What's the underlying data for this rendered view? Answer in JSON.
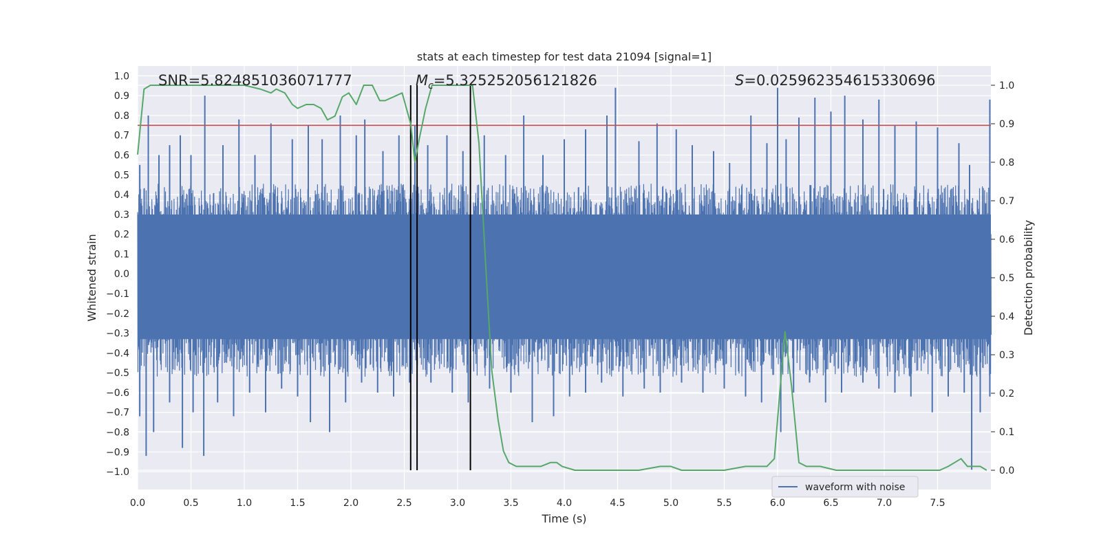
{
  "chart_data": {
    "type": "line",
    "title": "stats at each timestep for test data 21094 [signal=1]",
    "xlabel": "Time (s)",
    "ylabel_left": "Whitened strain",
    "ylabel_right": "Detection probability",
    "xlim": [
      0,
      8
    ],
    "ylim_left": [
      -1.09,
      1.05
    ],
    "ylim_right": [
      -0.05,
      1.05
    ],
    "xticks": [
      "0.0",
      "0.5",
      "1.0",
      "1.5",
      "2.0",
      "2.5",
      "3.0",
      "3.5",
      "4.0",
      "4.5",
      "5.0",
      "5.5",
      "6.0",
      "6.5",
      "7.0",
      "7.5"
    ],
    "yticks_left": [
      "1.0",
      "0.9",
      "0.8",
      "0.7",
      "0.6",
      "0.5",
      "0.4",
      "0.3",
      "0.2",
      "0.1",
      "0.0",
      "-0.1",
      "-0.2",
      "-0.3",
      "-0.4",
      "-0.5",
      "-0.6",
      "-0.7",
      "-0.8",
      "-0.9",
      "-1.0"
    ],
    "yticks_right": [
      "1.0",
      "0.9",
      "0.8",
      "0.7",
      "0.6",
      "0.5",
      "0.4",
      "0.3",
      "0.2",
      "0.1",
      "0.0"
    ],
    "grid": true,
    "annotations": {
      "snr": "SNR=5.824851036071777",
      "mc_symbol": "M",
      "mc_sub": "c",
      "mc_value": "=5.325252056121826",
      "s_symbol": "S",
      "s_value": "=0.025962354615330696"
    },
    "threshold_line": {
      "value": 0.75,
      "axis": "left",
      "color": "#c44e52"
    },
    "vertical_lines": {
      "x": [
        2.56,
        2.62,
        3.12
      ],
      "color": "#000000"
    },
    "legend": {
      "position": "lower-right",
      "entries": [
        "waveform with noise"
      ]
    },
    "series": [
      {
        "name": "waveform with noise",
        "axis": "left",
        "color": "#4c72b0",
        "envelope_upper_typical": 0.35,
        "envelope_lower_typical": -0.4,
        "spikes_upper": [
          [
            0.02,
            0.55
          ],
          [
            0.1,
            0.8
          ],
          [
            0.2,
            0.6
          ],
          [
            0.3,
            0.65
          ],
          [
            0.4,
            0.7
          ],
          [
            0.5,
            0.6
          ],
          [
            0.63,
            0.9
          ],
          [
            0.8,
            0.65
          ],
          [
            0.95,
            0.78
          ],
          [
            1.1,
            0.6
          ],
          [
            1.25,
            0.76
          ],
          [
            1.45,
            0.68
          ],
          [
            1.6,
            0.75
          ],
          [
            1.73,
            0.68
          ],
          [
            1.9,
            0.8
          ],
          [
            2.05,
            0.7
          ],
          [
            2.13,
            0.78
          ],
          [
            2.3,
            0.62
          ],
          [
            2.45,
            0.7
          ],
          [
            2.6,
            0.75
          ],
          [
            2.72,
            0.65
          ],
          [
            2.9,
            0.7
          ],
          [
            3.05,
            0.62
          ],
          [
            3.25,
            0.7
          ],
          [
            3.45,
            0.6
          ],
          [
            3.62,
            0.8
          ],
          [
            3.8,
            0.6
          ],
          [
            4.0,
            0.68
          ],
          [
            4.2,
            0.73
          ],
          [
            4.4,
            0.8
          ],
          [
            4.48,
            0.94
          ],
          [
            4.7,
            0.67
          ],
          [
            4.87,
            0.76
          ],
          [
            5.05,
            0.73
          ],
          [
            5.2,
            0.65
          ],
          [
            5.4,
            0.62
          ],
          [
            5.55,
            0.56
          ],
          [
            5.75,
            0.8
          ],
          [
            5.9,
            0.66
          ],
          [
            6.0,
            0.94
          ],
          [
            6.08,
            0.68
          ],
          [
            6.2,
            0.79
          ],
          [
            6.35,
            0.89
          ],
          [
            6.5,
            0.82
          ],
          [
            6.63,
            0.9
          ],
          [
            6.8,
            0.78
          ],
          [
            6.95,
            0.88
          ],
          [
            7.1,
            0.75
          ],
          [
            7.3,
            0.77
          ],
          [
            7.5,
            0.74
          ],
          [
            7.7,
            0.66
          ],
          [
            7.8,
            0.55
          ],
          [
            7.99,
            0.88
          ]
        ],
        "spikes_lower": [
          [
            0.02,
            -0.72
          ],
          [
            0.08,
            -0.92
          ],
          [
            0.15,
            -0.8
          ],
          [
            0.3,
            -0.65
          ],
          [
            0.42,
            -0.88
          ],
          [
            0.52,
            -0.7
          ],
          [
            0.62,
            -0.92
          ],
          [
            0.75,
            -0.65
          ],
          [
            0.9,
            -0.72
          ],
          [
            1.05,
            -0.6
          ],
          [
            1.2,
            -0.7
          ],
          [
            1.35,
            -0.58
          ],
          [
            1.5,
            -0.62
          ],
          [
            1.62,
            -0.75
          ],
          [
            1.8,
            -0.8
          ],
          [
            1.95,
            -0.65
          ],
          [
            2.1,
            -0.55
          ],
          [
            2.25,
            -0.6
          ],
          [
            2.4,
            -0.62
          ],
          [
            2.55,
            -0.55
          ],
          [
            2.75,
            -0.55
          ],
          [
            2.95,
            -0.6
          ],
          [
            3.1,
            -0.65
          ],
          [
            3.3,
            -0.58
          ],
          [
            3.5,
            -0.6
          ],
          [
            3.7,
            -0.75
          ],
          [
            3.9,
            -0.72
          ],
          [
            4.05,
            -0.62
          ],
          [
            4.2,
            -0.6
          ],
          [
            4.35,
            -0.55
          ],
          [
            4.55,
            -0.62
          ],
          [
            4.75,
            -0.58
          ],
          [
            4.9,
            -0.6
          ],
          [
            5.1,
            -0.55
          ],
          [
            5.3,
            -0.6
          ],
          [
            5.5,
            -0.58
          ],
          [
            5.7,
            -0.62
          ],
          [
            5.85,
            -0.65
          ],
          [
            6.03,
            -0.8
          ],
          [
            6.15,
            -0.6
          ],
          [
            6.3,
            -0.55
          ],
          [
            6.45,
            -0.65
          ],
          [
            6.6,
            -0.6
          ],
          [
            6.8,
            -0.55
          ],
          [
            6.95,
            -0.58
          ],
          [
            7.1,
            -0.6
          ],
          [
            7.25,
            -0.62
          ],
          [
            7.45,
            -0.7
          ],
          [
            7.6,
            -0.62
          ],
          [
            7.75,
            -0.6
          ],
          [
            7.82,
            -0.99
          ],
          [
            7.9,
            -0.7
          ],
          [
            7.99,
            -0.62
          ]
        ]
      },
      {
        "name": "detection probability",
        "axis": "right",
        "color": "#55a868",
        "x": [
          0.0,
          0.06,
          0.12,
          0.25,
          0.4,
          0.6,
          0.8,
          1.0,
          1.15,
          1.25,
          1.3,
          1.38,
          1.45,
          1.5,
          1.58,
          1.65,
          1.72,
          1.78,
          1.85,
          1.92,
          1.98,
          2.05,
          2.12,
          2.2,
          2.27,
          2.32,
          2.4,
          2.48,
          2.56,
          2.6,
          2.64,
          2.7,
          2.76,
          2.82,
          2.9,
          3.0,
          3.08,
          3.14,
          3.2,
          3.26,
          3.32,
          3.38,
          3.43,
          3.48,
          3.55,
          3.65,
          3.78,
          3.87,
          3.93,
          3.98,
          4.1,
          4.3,
          4.5,
          4.7,
          4.9,
          5.0,
          5.1,
          5.3,
          5.5,
          5.7,
          5.82,
          5.9,
          5.97,
          6.02,
          6.07,
          6.13,
          6.2,
          6.27,
          6.33,
          6.4,
          6.55,
          6.8,
          7.0,
          7.2,
          7.4,
          7.52,
          7.6,
          7.66,
          7.72,
          7.78,
          7.84,
          7.9,
          7.96
        ],
        "y": [
          0.82,
          0.99,
          1.0,
          1.0,
          1.0,
          1.0,
          1.0,
          1.0,
          0.99,
          0.98,
          0.99,
          0.98,
          0.95,
          0.94,
          0.95,
          0.95,
          0.94,
          0.91,
          0.92,
          0.97,
          0.98,
          0.95,
          1.0,
          1.0,
          0.96,
          0.96,
          0.97,
          0.98,
          0.9,
          0.8,
          0.86,
          0.94,
          1.0,
          1.0,
          1.0,
          1.0,
          1.0,
          1.0,
          0.85,
          0.55,
          0.26,
          0.13,
          0.05,
          0.02,
          0.01,
          0.01,
          0.01,
          0.02,
          0.02,
          0.01,
          0.0,
          0.0,
          0.0,
          0.0,
          0.01,
          0.01,
          0.0,
          0.0,
          0.0,
          0.01,
          0.01,
          0.01,
          0.03,
          0.2,
          0.36,
          0.22,
          0.02,
          0.01,
          0.01,
          0.01,
          0.0,
          0.0,
          0.0,
          0.0,
          0.0,
          0.0,
          0.01,
          0.02,
          0.03,
          0.01,
          0.01,
          0.01,
          0.0
        ]
      }
    ]
  }
}
